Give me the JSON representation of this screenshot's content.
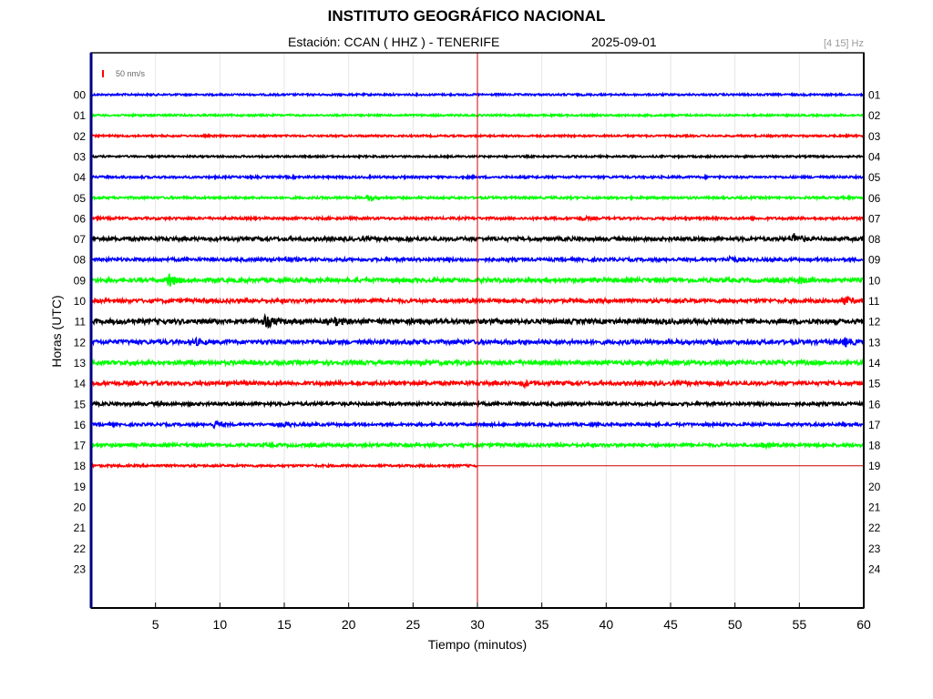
{
  "header": {
    "title": "INSTITUTO GEOGRÁFICO NACIONAL",
    "station": "Estación:  CCAN ( HHZ ) - TENERIFE",
    "date": "2025-09-01",
    "filter": "[4 15] Hz",
    "scale": "50 nm/s"
  },
  "colors": {
    "cycle": [
      "#0000ff",
      "#00ff00",
      "#ff0000",
      "#000000"
    ],
    "time_marker": "#cc0000",
    "frame": "#000000",
    "left_axis": "#000080"
  },
  "chart_data": {
    "type": "line",
    "title": "INSTITUTO GEOGRÁFICO NACIONAL",
    "subtitle": "Estación:  CCAN ( HHZ ) - TENERIFE",
    "xlabel": "Tiempo (minutos)",
    "ylabel": "Horas (UTC)",
    "xlim": [
      0,
      60
    ],
    "x_ticks": [
      5,
      10,
      15,
      20,
      25,
      30,
      35,
      40,
      45,
      50,
      55,
      60
    ],
    "left_hour_labels": [
      "00",
      "01",
      "02",
      "03",
      "04",
      "05",
      "06",
      "07",
      "08",
      "09",
      "10",
      "11",
      "12",
      "13",
      "14",
      "15",
      "16",
      "17",
      "18",
      "19",
      "20",
      "21",
      "22",
      "23"
    ],
    "right_hour_labels": [
      "01",
      "02",
      "03",
      "04",
      "05",
      "06",
      "07",
      "08",
      "09",
      "10",
      "11",
      "12",
      "13",
      "14",
      "15",
      "16",
      "17",
      "18",
      "19",
      "20",
      "21",
      "22",
      "23",
      "24"
    ],
    "grid": true,
    "current_time": {
      "hour": 18,
      "minute": 30
    },
    "traces": [
      {
        "hour": 0,
        "color": "blue",
        "amplitude": 1.0,
        "events": []
      },
      {
        "hour": 1,
        "color": "green",
        "amplitude": 1.0,
        "events": []
      },
      {
        "hour": 2,
        "color": "red",
        "amplitude": 1.0,
        "events": []
      },
      {
        "hour": 3,
        "color": "black",
        "amplitude": 1.0,
        "events": []
      },
      {
        "hour": 4,
        "color": "blue",
        "amplitude": 1.2,
        "events": []
      },
      {
        "hour": 5,
        "color": "green",
        "amplitude": 1.2,
        "events": [
          {
            "minute": 21.5,
            "amplitude": 3
          }
        ]
      },
      {
        "hour": 6,
        "color": "red",
        "amplitude": 1.3,
        "events": [
          {
            "minute": 38,
            "amplitude": 2
          }
        ]
      },
      {
        "hour": 7,
        "color": "black",
        "amplitude": 2.0,
        "events": [
          {
            "minute": 54.5,
            "amplitude": 6
          }
        ]
      },
      {
        "hour": 8,
        "color": "blue",
        "amplitude": 1.7,
        "events": [
          {
            "minute": 15,
            "amplitude": 3
          },
          {
            "minute": 49.5,
            "amplitude": 4
          }
        ]
      },
      {
        "hour": 9,
        "color": "green",
        "amplitude": 2.2,
        "events": [
          {
            "minute": 6,
            "amplitude": 8
          },
          {
            "minute": 55,
            "amplitude": 3
          }
        ]
      },
      {
        "hour": 10,
        "color": "red",
        "amplitude": 2.0,
        "events": [
          {
            "minute": 58.5,
            "amplitude": 4
          }
        ]
      },
      {
        "hour": 11,
        "color": "black",
        "amplitude": 2.5,
        "events": [
          {
            "minute": 13.5,
            "amplitude": 7
          },
          {
            "minute": 19,
            "amplitude": 3
          }
        ]
      },
      {
        "hour": 12,
        "color": "blue",
        "amplitude": 2.2,
        "events": [
          {
            "minute": 8,
            "amplitude": 3
          },
          {
            "minute": 58.5,
            "amplitude": 4
          }
        ]
      },
      {
        "hour": 13,
        "color": "green",
        "amplitude": 2.2,
        "events": []
      },
      {
        "hour": 14,
        "color": "red",
        "amplitude": 2.0,
        "events": [
          {
            "minute": 33.5,
            "amplitude": 3
          }
        ]
      },
      {
        "hour": 15,
        "color": "black",
        "amplitude": 1.7,
        "events": []
      },
      {
        "hour": 16,
        "color": "blue",
        "amplitude": 1.5,
        "events": [
          {
            "minute": 9.5,
            "amplitude": 4
          },
          {
            "minute": 15,
            "amplitude": 2
          }
        ]
      },
      {
        "hour": 17,
        "color": "green",
        "amplitude": 1.7,
        "events": [
          {
            "minute": 52,
            "amplitude": 3
          }
        ]
      },
      {
        "hour": 18,
        "color": "red",
        "amplitude": 1.2,
        "end_minute": 30,
        "events": []
      }
    ]
  }
}
